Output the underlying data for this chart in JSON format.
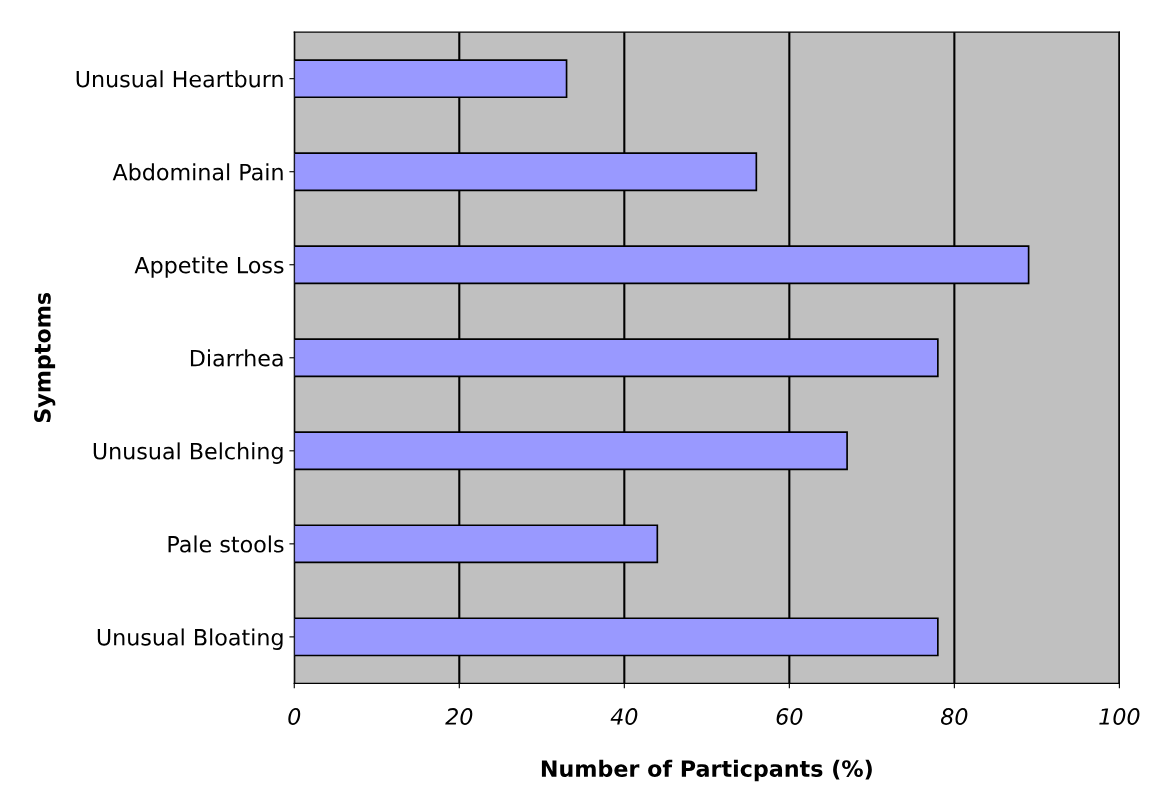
{
  "chart_data": {
    "type": "bar",
    "orientation": "horizontal",
    "xlabel": "Number of Particpants (%)",
    "ylabel": "Symptoms",
    "categories": [
      "Unusual Heartburn",
      "Abdominal Pain",
      "Appetite Loss",
      "Diarrhea",
      "Unusual Belching",
      "Pale stools",
      "Unusual Bloating"
    ],
    "values": [
      33,
      56,
      89,
      78,
      67,
      44,
      78
    ],
    "color": "#9999ff",
    "xlim": [
      0,
      100
    ],
    "xticks": [
      0,
      20,
      40,
      60,
      80,
      100
    ],
    "grid": "x",
    "legend": false
  }
}
